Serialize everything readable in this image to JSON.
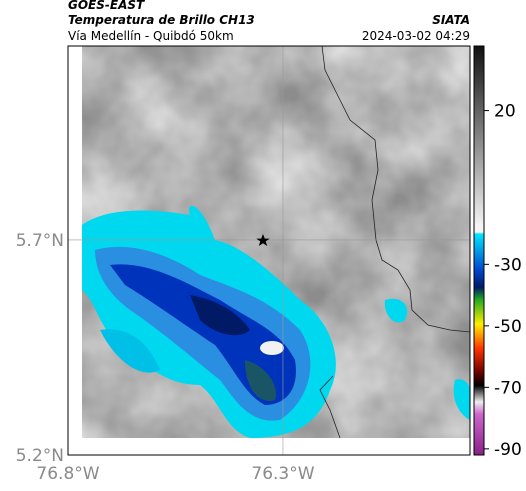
{
  "header": {
    "left_title": "GOES-EAST",
    "left_subtitle": "Temperatura de Brillo CH13",
    "left_caption": "Vía Medellín - Quibdó 50km",
    "right_title": "SIATA",
    "right_caption": "2024-03-02 04:29"
  },
  "map": {
    "xlim": [
      -76.8,
      -75.865
    ],
    "ylim": [
      5.2,
      6.151
    ],
    "xticks": [
      {
        "value": -76.8,
        "label": "76.8°W"
      },
      {
        "value": -76.3,
        "label": "76.3°W"
      }
    ],
    "yticks": [
      {
        "value": 5.7,
        "label": "5.7°N"
      },
      {
        "value": 5.2,
        "label": "5.2°N"
      }
    ]
  },
  "colorbar": {
    "lim": [
      -92,
      41
    ],
    "ticks": [
      20,
      -30,
      -50,
      -70,
      -90
    ]
  }
}
